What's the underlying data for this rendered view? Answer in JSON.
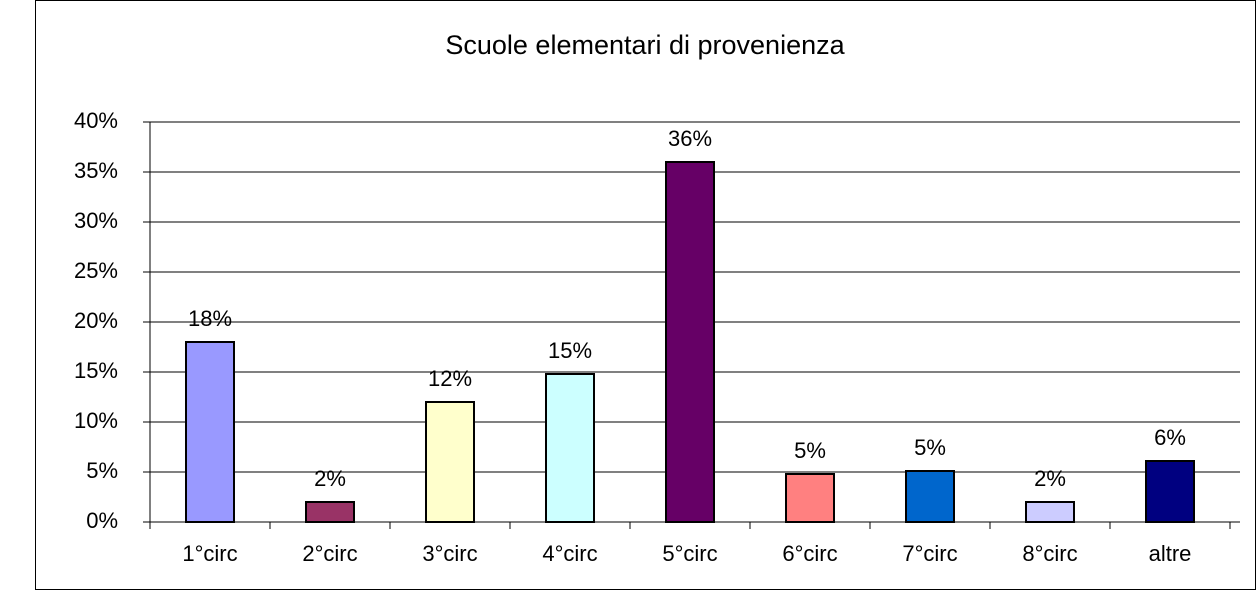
{
  "chart_data": {
    "type": "bar",
    "title": "Scuole elementari di provenienza",
    "categories": [
      "1°circ",
      "2°circ",
      "3°circ",
      "4°circ",
      "5°circ",
      "6°circ",
      "7°circ",
      "8°circ",
      "altre"
    ],
    "values": [
      18,
      2,
      12,
      14.8,
      36,
      4.8,
      5.1,
      2,
      6.1
    ],
    "value_labels": [
      "18%",
      "2%",
      "12%",
      "15%",
      "36%",
      "5%",
      "5%",
      "2%",
      "6%"
    ],
    "colors": [
      "#9999ff",
      "#993366",
      "#ffffcc",
      "#ccffff",
      "#660066",
      "#ff8080",
      "#0066cc",
      "#ccccff",
      "#000080"
    ],
    "ylim": [
      0,
      40
    ],
    "yticks": [
      {
        "value": 0,
        "label": "0%"
      },
      {
        "value": 5,
        "label": "5%"
      },
      {
        "value": 10,
        "label": "10%"
      },
      {
        "value": 15,
        "label": "15%"
      },
      {
        "value": 20,
        "label": "20%"
      },
      {
        "value": 25,
        "label": "25%"
      },
      {
        "value": 30,
        "label": "30%"
      },
      {
        "value": 35,
        "label": "35%"
      },
      {
        "value": 40,
        "label": "40%"
      }
    ],
    "grid": true
  }
}
